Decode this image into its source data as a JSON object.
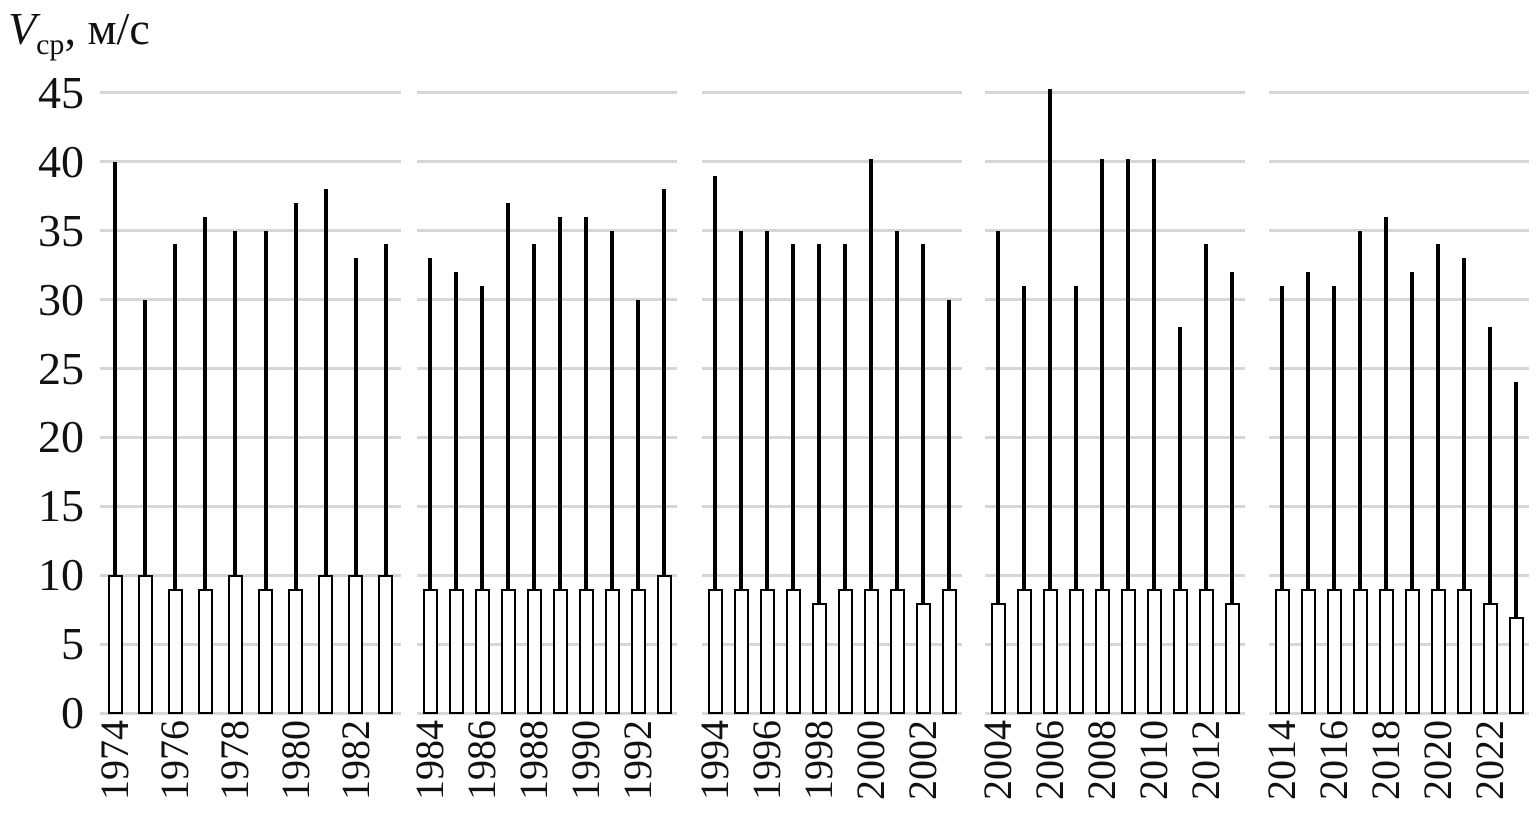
{
  "title": {
    "symbol": "V",
    "subscript": "ср",
    "rest": ", м/с"
  },
  "chart_data": {
    "type": "bar",
    "title": "Vср, м/с",
    "ylabel": "Vср, м/с",
    "xlabel": "",
    "ylim": [
      0,
      45
    ],
    "y_ticks": [
      0,
      5,
      10,
      15,
      20,
      25,
      30,
      35,
      40,
      45
    ],
    "grid": "horizontal",
    "legend": "none",
    "panels": 5,
    "years_per_panel": 10,
    "categories": [
      1974,
      1975,
      1976,
      1977,
      1978,
      1979,
      1980,
      1981,
      1982,
      1983,
      1984,
      1985,
      1986,
      1987,
      1988,
      1989,
      1990,
      1991,
      1992,
      1993,
      1994,
      1995,
      1996,
      1997,
      1998,
      1999,
      2000,
      2001,
      2002,
      2003,
      2004,
      2005,
      2006,
      2007,
      2008,
      2009,
      2010,
      2011,
      2012,
      2013,
      2014,
      2015,
      2016,
      2017,
      2018,
      2019,
      2020,
      2021,
      2022,
      2023
    ],
    "x_tick_labels": [
      "1974",
      "1976",
      "1978",
      "1980",
      "1982",
      "1984",
      "1986",
      "1988",
      "1990",
      "1992",
      "1994",
      "1996",
      "1998",
      "2000",
      "2002",
      "2004",
      "2006",
      "2008",
      "2010",
      "2012",
      "2014",
      "2016",
      "2018",
      "2020",
      "2022"
    ],
    "series": [
      {
        "name": "bar",
        "values": [
          10,
          10,
          9,
          9,
          10,
          9,
          9,
          10,
          10,
          10,
          9,
          9,
          9,
          9,
          9,
          9,
          9,
          9,
          9,
          10,
          9,
          9,
          9,
          9,
          8,
          9,
          9,
          9,
          8,
          9,
          8,
          9,
          9,
          9,
          9,
          9,
          9,
          9,
          9,
          8,
          9,
          9,
          9,
          9,
          9,
          9,
          9,
          9,
          8,
          7
        ]
      },
      {
        "name": "whisker",
        "values": [
          40,
          30,
          34,
          36,
          35,
          35,
          37,
          38,
          33,
          34,
          33,
          32,
          31,
          37,
          34,
          36,
          36,
          35,
          30,
          38,
          39,
          35,
          35,
          34,
          34,
          34,
          40.2,
          35,
          34,
          30,
          35,
          31,
          45.3,
          31,
          40.2,
          40.2,
          40.2,
          28,
          34,
          32,
          31,
          32,
          31,
          35,
          36,
          32,
          34,
          33,
          28,
          24
        ]
      }
    ]
  }
}
